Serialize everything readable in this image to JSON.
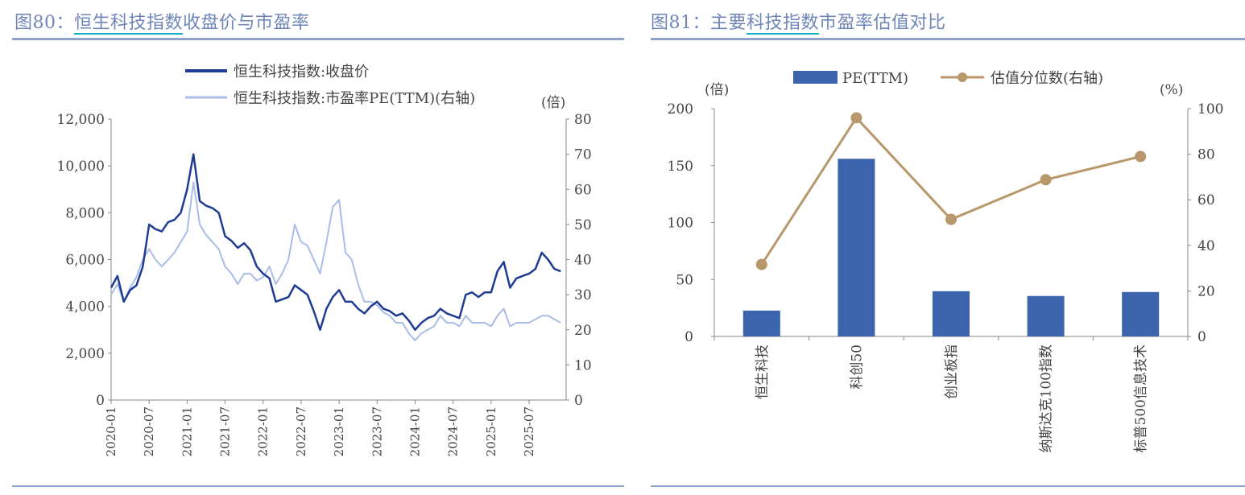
{
  "left": {
    "title_prefix": "图80：",
    "title_underlined": "恒生科技指数",
    "title_rest": "收盘价与市盈率"
  },
  "right": {
    "title_prefix": "图81：主要",
    "title_underlined": "科技指数",
    "title_rest": "市盈率估值对比"
  },
  "chart_data": [
    {
      "type": "line",
      "legend": [
        "恒生科技指数:收盘价",
        "恒生科技指数:市盈率PE(TTM)(右轴)"
      ],
      "legend_position": "top",
      "y_right_unit": "(倍)",
      "ylim": [
        0,
        12000
      ],
      "y_ticks": [
        "0",
        "2,000",
        "4,000",
        "6,000",
        "8,000",
        "10,000",
        "12,000"
      ],
      "y2lim": [
        0,
        80
      ],
      "y2_ticks": [
        "0",
        "10",
        "20",
        "30",
        "40",
        "50",
        "60",
        "70",
        "80"
      ],
      "x_ticks": [
        "2020-01",
        "2020-07",
        "2021-01",
        "2021-07",
        "2022-01",
        "2022-07",
        "2023-01",
        "2023-07",
        "2024-01",
        "2024-07",
        "2025-01",
        "2025-07"
      ],
      "x_start": "2020-01",
      "grid": false,
      "colors": {
        "close": "#1f3c93",
        "pe": "#a9bde6"
      },
      "series": [
        {
          "name": "恒生科技指数:收盘价",
          "axis": "left",
          "values": [
            4800,
            5300,
            4200,
            4700,
            4900,
            5700,
            7500,
            7300,
            7200,
            7600,
            7700,
            8000,
            9000,
            10500,
            8500,
            8300,
            8200,
            8000,
            7000,
            6800,
            6500,
            6700,
            6400,
            5700,
            5400,
            5200,
            4200,
            4300,
            4400,
            4900,
            4700,
            4500,
            3800,
            3000,
            3900,
            4400,
            4700,
            4200,
            4200,
            3900,
            3700,
            4000,
            4200,
            3900,
            3800,
            3600,
            3700,
            3400,
            3000,
            3300,
            3500,
            3600,
            3900,
            3700,
            3600,
            3500,
            4500,
            4600,
            4400,
            4600,
            4600,
            5500,
            5900,
            4800,
            5200,
            5300,
            5400,
            5600,
            6300,
            6000,
            5600,
            5500
          ]
        },
        {
          "name": "恒生科技指数:市盈率PE(TTM)(右轴)",
          "axis": "right",
          "values": [
            30,
            33,
            28,
            32,
            35,
            40,
            43,
            40,
            38,
            40,
            42,
            45,
            48,
            62,
            50,
            47,
            45,
            43,
            38,
            36,
            33,
            36,
            36,
            34,
            35,
            38,
            33,
            36,
            40,
            50,
            45,
            44,
            40,
            36,
            45,
            55,
            57,
            42,
            40,
            33,
            28,
            28,
            27,
            25,
            24,
            22,
            22,
            19,
            17,
            19,
            20,
            21,
            24,
            22,
            22,
            21,
            24,
            22,
            22,
            22,
            21,
            24,
            26,
            21,
            22,
            22,
            22,
            23,
            24,
            24,
            23,
            22
          ]
        }
      ]
    },
    {
      "type": "bar",
      "legend": [
        "PE(TTM)",
        "估值分位数(右轴)"
      ],
      "legend_position": "top",
      "y_left_unit": "(倍)",
      "y_right_unit": "(%)",
      "ylim": [
        0,
        200
      ],
      "y_ticks": [
        "0",
        "50",
        "100",
        "150",
        "200"
      ],
      "y2lim": [
        0,
        100
      ],
      "y2_ticks": [
        "0",
        "20",
        "40",
        "60",
        "80",
        "100"
      ],
      "categories": [
        "恒生科技",
        "科创50",
        "创业板指",
        "纳斯达克100指数",
        "标普500信息技术"
      ],
      "colors": {
        "bar": "#3b64ad",
        "line": "#b8976a"
      },
      "series": [
        {
          "name": "PE(TTM)",
          "kind": "bar",
          "values": [
            22.7,
            156,
            39.7,
            35.5,
            39
          ]
        },
        {
          "name": "估值分位数(右轴)",
          "kind": "line",
          "values": [
            31.6,
            96,
            51.4,
            68.8,
            79
          ]
        }
      ]
    }
  ]
}
